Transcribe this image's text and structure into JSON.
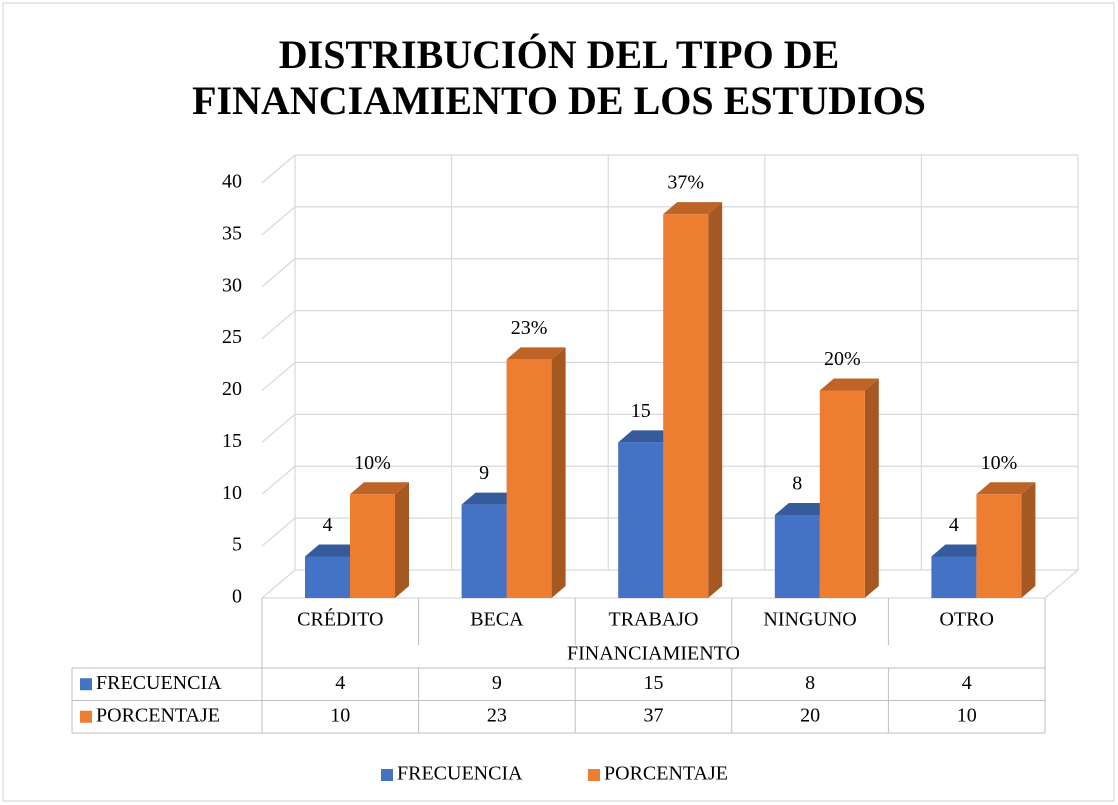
{
  "chart_data": {
    "type": "bar3d",
    "title": "DISTRIBUCIÓN DEL TIPO DE FINANCIAMIENTO DE LOS ESTUDIOS",
    "x_label": "FINANCIAMIENTO",
    "categories": [
      "CRÉDITO",
      "BECA",
      "TRABAJO",
      "NINGUNO",
      "OTRO"
    ],
    "series": [
      {
        "name": "FRECUENCIA",
        "color": "#4472c4",
        "values": [
          4,
          9,
          15,
          8,
          4
        ]
      },
      {
        "name": "PORCENTAJE",
        "color": "#ed7d31",
        "values": [
          10,
          23,
          37,
          20,
          10
        ],
        "value_labels": [
          "10%",
          "23%",
          "37%",
          "20%",
          "10%"
        ]
      }
    ],
    "ylim": [
      0,
      40
    ],
    "yticks": [
      0,
      5,
      10,
      15,
      20,
      25,
      30,
      35,
      40
    ],
    "grid": true,
    "legend": "bottom",
    "data_table": true
  }
}
